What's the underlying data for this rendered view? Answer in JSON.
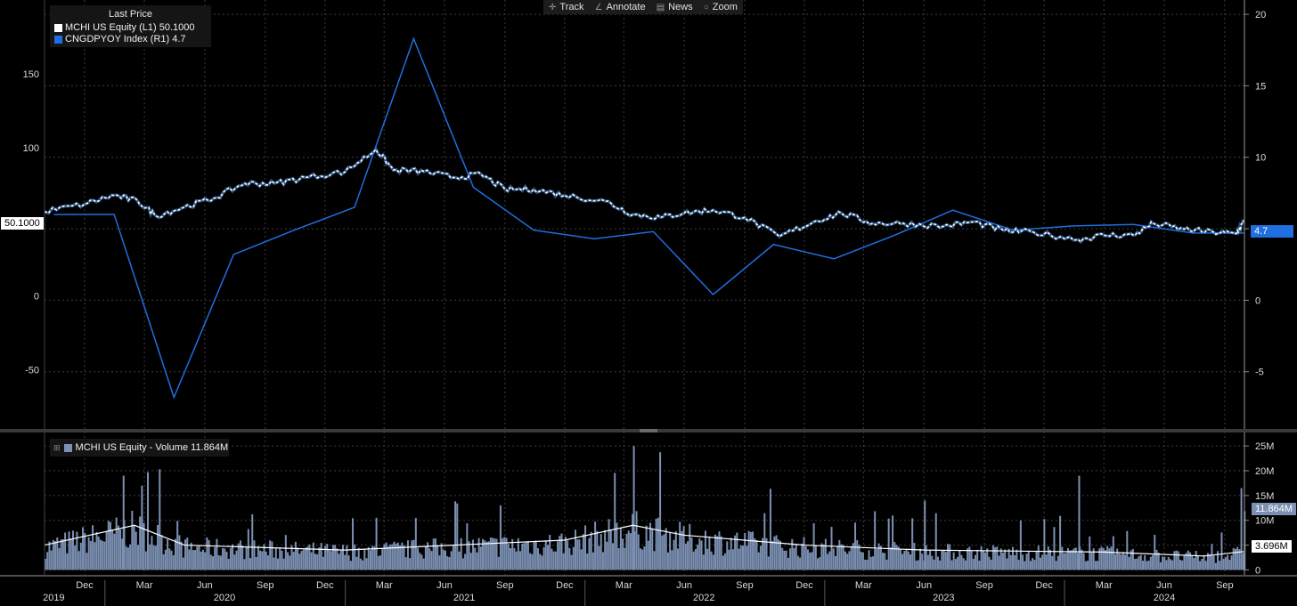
{
  "toolbar": {
    "items": [
      {
        "label": "Track",
        "icon": "crosshair-icon"
      },
      {
        "label": "Annotate",
        "icon": "pencil-icon"
      },
      {
        "label": "News",
        "icon": "news-icon"
      },
      {
        "label": "Zoom",
        "icon": "magnifier-icon"
      }
    ]
  },
  "legend": {
    "title": "Last Price",
    "series": [
      {
        "label": "MCHI US Equity  (L1)  50.1000",
        "color": "#ffffff"
      },
      {
        "label": "CNGDPYOY Index  (R1)  4.7",
        "color": "#1f6fe0"
      }
    ]
  },
  "volume_legend": {
    "label": "MCHI US Equity - Volume 11.864M",
    "color": "#7b90b2"
  },
  "badges": {
    "price_last": "50.1000",
    "gdp_last": "4.7",
    "volume_last": "11.864M",
    "volume_ma_last": "3.696M"
  },
  "chart_data": [
    {
      "type": "line",
      "series": [
        {
          "name": "MCHI US Equity (L1)",
          "axis": "left",
          "color": "#ffffff",
          "x": [
            "2019-10-01",
            "2019-12-01",
            "2020-01-15",
            "2020-02-20",
            "2020-03-19",
            "2020-05-01",
            "2020-06-15",
            "2020-08-01",
            "2020-09-15",
            "2020-11-01",
            "2021-01-01",
            "2021-02-17",
            "2021-03-15",
            "2021-05-01",
            "2021-06-15",
            "2021-07-27",
            "2021-09-01",
            "2021-10-15",
            "2021-12-01",
            "2022-02-01",
            "2022-03-15",
            "2022-04-26",
            "2022-06-01",
            "2022-07-15",
            "2022-09-01",
            "2022-10-24",
            "2022-12-15",
            "2023-01-26",
            "2023-03-15",
            "2023-05-01",
            "2023-07-01",
            "2023-08-15",
            "2023-10-01",
            "2023-11-15",
            "2024-01-22",
            "2024-03-01",
            "2024-04-15",
            "2024-05-15",
            "2024-07-01",
            "2024-08-15",
            "2024-09-18",
            "2024-09-30"
          ],
          "y": [
            57,
            62,
            68,
            64,
            54,
            60,
            66,
            76,
            76,
            80,
            84,
            99,
            85,
            84,
            80,
            82,
            72,
            72,
            68,
            64,
            55,
            53,
            56,
            58,
            53,
            40,
            50,
            56,
            49,
            49,
            47,
            50,
            44,
            43,
            38,
            41,
            41,
            49,
            45,
            43,
            42,
            50.1
          ]
        },
        {
          "name": "CNGDPYOY Index (R1)",
          "axis": "right",
          "color": "#1f6fe0",
          "x": [
            "2019-10-15",
            "2020-01-15",
            "2020-04-15",
            "2020-07-15",
            "2020-10-15",
            "2021-01-15",
            "2021-04-15",
            "2021-07-15",
            "2021-10-15",
            "2022-01-15",
            "2022-04-15",
            "2022-07-15",
            "2022-10-15",
            "2023-01-15",
            "2023-04-15",
            "2023-07-15",
            "2023-10-15",
            "2024-01-15",
            "2024-04-15",
            "2024-07-15",
            "2024-09-30"
          ],
          "y": [
            6.0,
            6.0,
            -6.8,
            3.2,
            4.9,
            6.5,
            18.3,
            7.9,
            4.9,
            4.3,
            4.8,
            0.4,
            3.9,
            2.9,
            4.5,
            6.3,
            4.9,
            5.2,
            5.3,
            4.7,
            4.7
          ]
        }
      ],
      "ylim_left": [
        -90,
        200
      ],
      "ylim_right": [
        -9,
        21
      ],
      "yticks_left": [
        -50,
        0,
        50,
        100,
        150
      ],
      "yticks_right": [
        -5,
        0,
        5,
        10,
        15,
        20
      ],
      "xticks": [
        "Dec",
        "Mar",
        "Jun",
        "Sep",
        "Dec",
        "Mar",
        "Jun",
        "Sep",
        "Dec",
        "Mar",
        "Jun",
        "Sep",
        "Dec",
        "Mar",
        "Jun",
        "Sep",
        "Dec",
        "Mar",
        "Jun",
        "Sep"
      ],
      "xtick_dates": [
        "2019-12-01",
        "2020-03-01",
        "2020-06-01",
        "2020-09-01",
        "2020-12-01",
        "2021-03-01",
        "2021-06-01",
        "2021-09-01",
        "2021-12-01",
        "2022-03-01",
        "2022-06-01",
        "2022-09-01",
        "2022-12-01",
        "2023-03-01",
        "2023-06-01",
        "2023-09-01",
        "2023-12-01",
        "2024-03-01",
        "2024-06-01",
        "2024-09-01"
      ],
      "year_labels": [
        "2019",
        "2020",
        "2021",
        "2022",
        "2023",
        "2024"
      ],
      "year_dates": [
        "2019-10-15",
        "2020-07-01",
        "2021-07-01",
        "2022-07-01",
        "2023-07-01",
        "2024-06-01"
      ],
      "xlim": [
        "2019-10-01",
        "2024-10-01"
      ],
      "grid": true
    },
    {
      "type": "bar",
      "series": [
        {
          "name": "MCHI US Equity - Volume",
          "color": "#7b90b2",
          "peaks": [
            {
              "x": "2020-01-28",
              "y": 19
            },
            {
              "x": "2020-02-25",
              "y": 17
            },
            {
              "x": "2022-03-15",
              "y": 25
            },
            {
              "x": "2023-06-01",
              "y": 14
            },
            {
              "x": "2024-01-22",
              "y": 19
            },
            {
              "x": "2024-09-25",
              "y": 16.5
            },
            {
              "x": "2024-09-30",
              "y": 11.864
            }
          ]
        },
        {
          "name": "Volume moving average",
          "color": "#ffffff",
          "x": [
            "2019-10-01",
            "2020-02-15",
            "2020-05-01",
            "2021-01-01",
            "2021-12-01",
            "2022-03-15",
            "2022-06-01",
            "2022-12-01",
            "2023-06-01",
            "2024-03-01",
            "2024-08-01",
            "2024-09-30"
          ],
          "y": [
            5,
            9,
            5,
            4,
            6,
            9,
            7,
            5,
            4,
            3.6,
            2.8,
            3.696
          ]
        }
      ],
      "ylim": [
        -1,
        27
      ],
      "yticks": [
        0,
        5,
        10,
        15,
        20,
        25
      ],
      "ytick_labels": [
        "0",
        "5M",
        "10M",
        "15M",
        "20M",
        "25M"
      ],
      "grid": true
    }
  ]
}
